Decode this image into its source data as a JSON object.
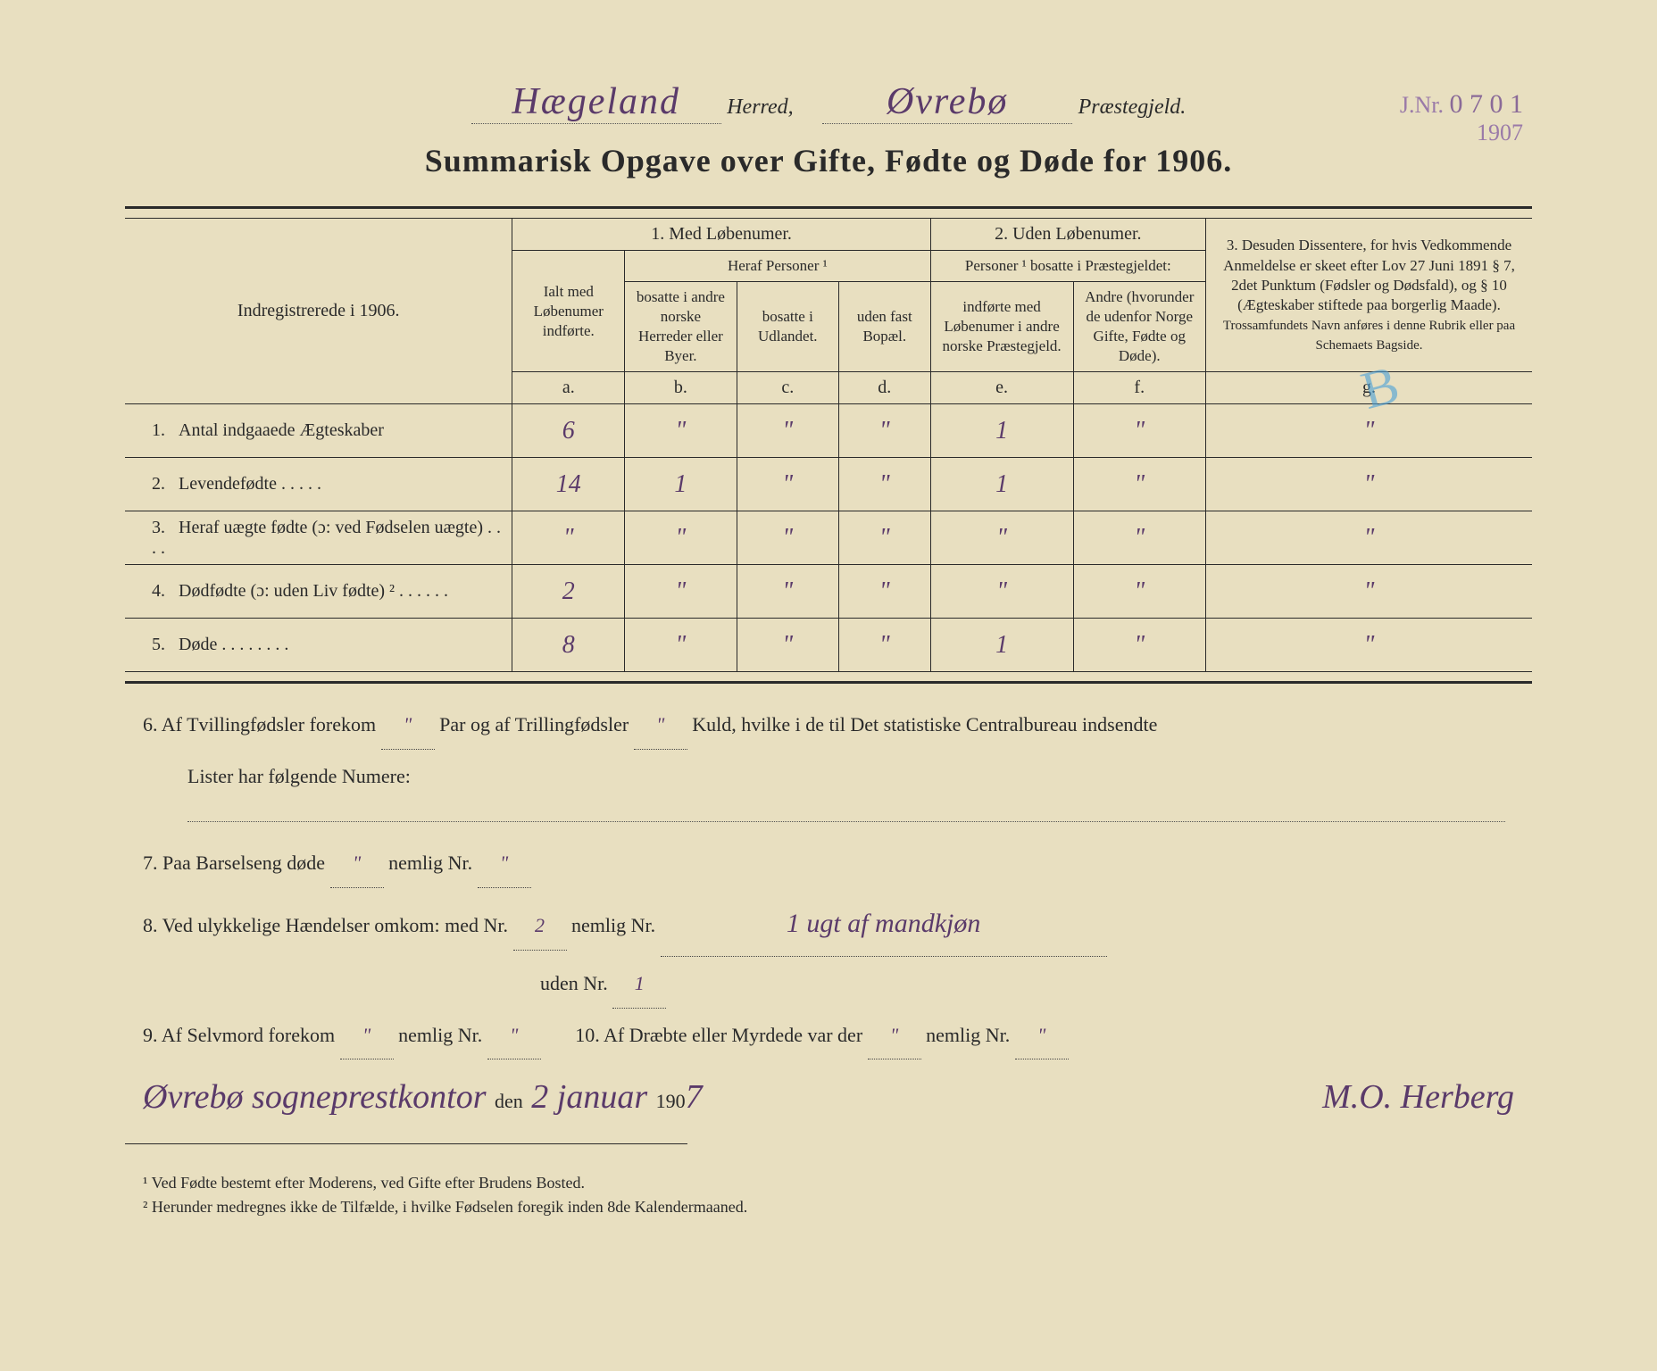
{
  "header": {
    "herred_hand": "Hægeland",
    "herred_label": "Herred,",
    "praestegjeld_hand": "Øvrebø",
    "praestegjeld_label": "Præstegjeld.",
    "jnr_label": "J.Nr.",
    "jnr_num": "0 7 0 1",
    "jnr_year": "1907"
  },
  "title": "Summarisk Opgave over Gifte, Fødte og Døde for 1906.",
  "table": {
    "left_header": "Indregistrerede i 1906.",
    "group1": "1.  Med Løbenumer.",
    "group1_sub1": "Ialt med Løbenumer indførte.",
    "group1_sub2": "Heraf Personer ¹",
    "col_b": "bosatte i andre norske Herreder eller Byer.",
    "col_c": "bosatte i Udlandet.",
    "col_d": "uden fast Bopæl.",
    "group2": "2. Uden Løbenumer.",
    "group2_sub": "Personer ¹ bosatte i Præstegjeldet:",
    "col_e": "indførte med Løbenumer i andre norske Præstegjeld.",
    "col_f": "Andre (hvorunder de udenfor Norge Gifte, Fødte og Døde).",
    "group3": "3.  Desuden Dissentere, for hvis Vedkommende Anmeldelse er skeet efter Lov 27 Juni 1891 § 7, 2det Punktum (Fødsler og Dødsfald), og § 10 (Ægteskaber stiftede paa borgerlig Maade).",
    "group3_sub": "Trossamfundets Navn anføres i denne Rubrik eller paa Schemaets Bagside.",
    "col_letters": {
      "a": "a.",
      "b": "b.",
      "c": "c.",
      "d": "d.",
      "e": "e.",
      "f": "f.",
      "g": "g."
    },
    "rows": [
      {
        "num": "1.",
        "label": "Antal indgaaede Ægteskaber",
        "a": "6",
        "b": "\"",
        "c": "\"",
        "d": "\"",
        "e": "1",
        "f": "\"",
        "g": "\""
      },
      {
        "num": "2.",
        "label": "Levendefødte   .   .   .   .   .",
        "a": "14",
        "b": "1",
        "c": "\"",
        "d": "\"",
        "e": "1",
        "f": "\"",
        "g": "\""
      },
      {
        "num": "3.",
        "label": "Heraf uægte fødte (ɔ: ved Fødselen uægte)   .   .   .   .",
        "a": "\"",
        "b": "\"",
        "c": "\"",
        "d": "\"",
        "e": "\"",
        "f": "\"",
        "g": "\""
      },
      {
        "num": "4.",
        "label": "Dødfødte (ɔ: uden Liv fødte) ²   .   .   .   .   .   .",
        "a": "2",
        "b": "\"",
        "c": "\"",
        "d": "\"",
        "e": "\"",
        "f": "\"",
        "g": "\""
      },
      {
        "num": "5.",
        "label": "Døde   .   .   .   .   .   .   .   .",
        "a": "8",
        "b": "\"",
        "c": "\"",
        "d": "\"",
        "e": "1",
        "f": "\"",
        "g": "\""
      }
    ]
  },
  "notes": {
    "n6a": "6.   Af Tvillingfødsler forekom",
    "n6a_val": "\"",
    "n6b": "Par og af Trillingfødsler",
    "n6b_val": "\"",
    "n6c": "Kuld, hvilke i de til Det statistiske Centralbureau indsendte",
    "n6d": "Lister har følgende Numere:",
    "n7": "7.   Paa Barselseng døde",
    "n7_val1": "\"",
    "n7b": "nemlig Nr.",
    "n7_val2": "\"",
    "n8": "8.   Ved ulykkelige Hændelser omkom:  med Nr.",
    "n8_val1": "2",
    "n8b": "nemlig Nr.",
    "n8_hand": "1 ugt af mandkjøn",
    "n8c": "uden Nr.",
    "n8_val2": "1",
    "n9": "9.   Af Selvmord forekom",
    "n9_val1": "\"",
    "n9b": "nemlig Nr.",
    "n9_val2": "\"",
    "n10": "10.   Af Dræbte eller Myrdede var der",
    "n10_val1": "\"",
    "n10b": "nemlig Nr.",
    "n10_val2": "\""
  },
  "signature": {
    "place": "Øvrebø sogneprestkontor",
    "den": "den",
    "date": "2 januar",
    "year_prefix": "190",
    "year_suffix": "7",
    "sig": "M.O. Herberg"
  },
  "footnotes": {
    "f1": "¹ Ved Fødte bestemt efter Moderens, ved Gifte efter Brudens Bosted.",
    "f2": "² Herunder medregnes ikke de Tilfælde, i hvilke Fødselen foregik inden 8de Kalendermaaned."
  },
  "blue_mark": "B"
}
